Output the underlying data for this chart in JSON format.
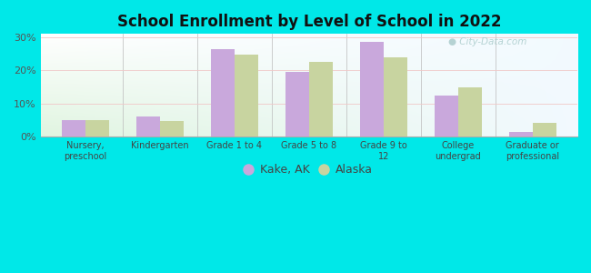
{
  "title": "School Enrollment by Level of School in 2022",
  "categories": [
    "Nursery,\npreschool",
    "Kindergarten",
    "Grade 1 to 4",
    "Grade 5 to 8",
    "Grade 9 to\n12",
    "College\nundergrad",
    "Graduate or\nprofessional"
  ],
  "kake_values": [
    5.0,
    6.2,
    26.5,
    19.5,
    28.5,
    12.5,
    1.5
  ],
  "alaska_values": [
    5.0,
    4.8,
    24.8,
    22.5,
    24.0,
    15.0,
    4.2
  ],
  "kake_color": "#c9a8dc",
  "alaska_color": "#c8d4a0",
  "background_outer": "#00e8e8",
  "ylim": [
    0,
    31
  ],
  "yticks": [
    0,
    10,
    20,
    30
  ],
  "ytick_labels": [
    "0%",
    "10%",
    "20%",
    "30%"
  ],
  "legend_labels": [
    "Kake, AK",
    "Alaska"
  ],
  "watermark": "City-Data.com",
  "bar_width": 0.32
}
